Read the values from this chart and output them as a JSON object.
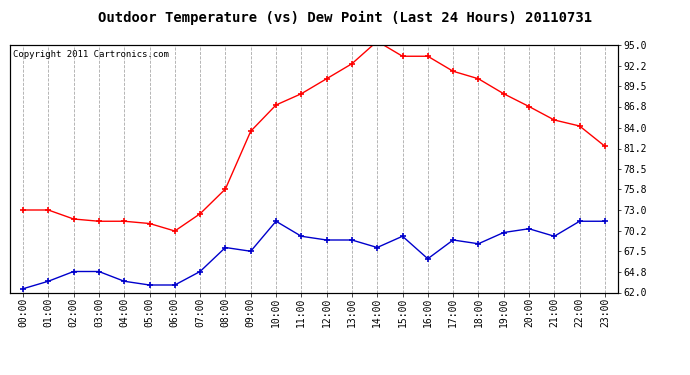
{
  "title": "Outdoor Temperature (vs) Dew Point (Last 24 Hours) 20110731",
  "copyright_text": "Copyright 2011 Cartronics.com",
  "hours": [
    "00:00",
    "01:00",
    "02:00",
    "03:00",
    "04:00",
    "05:00",
    "06:00",
    "07:00",
    "08:00",
    "09:00",
    "10:00",
    "11:00",
    "12:00",
    "13:00",
    "14:00",
    "15:00",
    "16:00",
    "17:00",
    "18:00",
    "19:00",
    "20:00",
    "21:00",
    "22:00",
    "23:00"
  ],
  "temp_red": [
    73.0,
    73.0,
    71.8,
    71.5,
    71.5,
    71.2,
    70.2,
    72.5,
    75.8,
    83.5,
    87.0,
    88.5,
    90.5,
    92.5,
    95.5,
    93.5,
    93.5,
    91.5,
    90.5,
    88.5,
    86.8,
    85.0,
    84.2,
    81.5
  ],
  "dew_blue": [
    62.5,
    63.5,
    64.8,
    64.8,
    63.5,
    63.0,
    63.0,
    64.8,
    68.0,
    67.5,
    71.5,
    69.5,
    69.0,
    69.0,
    68.0,
    69.5,
    66.5,
    69.0,
    68.5,
    70.0,
    70.5,
    69.5,
    71.5,
    71.5
  ],
  "red_color": "#ff0000",
  "blue_color": "#0000cc",
  "background_color": "#ffffff",
  "grid_color": "#aaaaaa",
  "ylim": [
    62.0,
    95.0
  ],
  "yticks_right": [
    62.0,
    64.8,
    67.5,
    70.2,
    73.0,
    75.8,
    78.5,
    81.2,
    84.0,
    86.8,
    89.5,
    92.2,
    95.0
  ],
  "title_fontsize": 10,
  "copyright_fontsize": 6.5,
  "tick_fontsize": 7
}
